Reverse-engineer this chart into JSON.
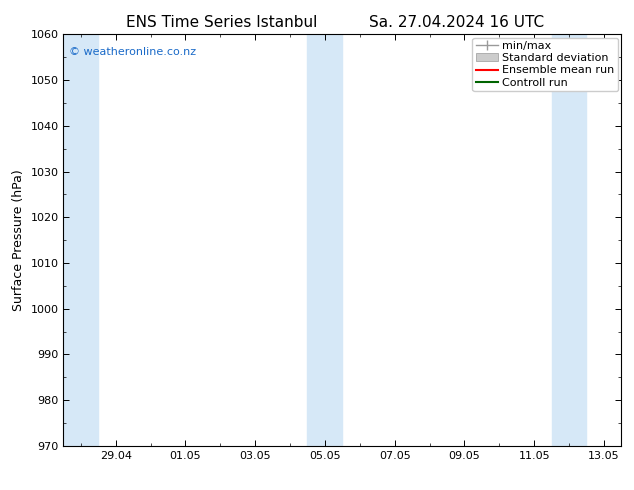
{
  "title_left": "ENS Time Series Istanbul",
  "title_right": "Sa. 27.04.2024 16 UTC",
  "ylabel": "Surface Pressure (hPa)",
  "ylim": [
    970,
    1060
  ],
  "yticks": [
    970,
    980,
    990,
    1000,
    1010,
    1020,
    1030,
    1040,
    1050,
    1060
  ],
  "background_color": "#ffffff",
  "plot_bg_color": "#ffffff",
  "watermark": "© weatheronline.co.nz",
  "watermark_color": "#1a6ac8",
  "xlim": [
    27.5,
    43.5
  ],
  "xtick_positions": [
    29,
    31,
    33,
    35,
    37,
    39,
    41,
    43
  ],
  "xtick_labels": [
    "29.04",
    "01.05",
    "03.05",
    "05.05",
    "07.05",
    "09.05",
    "11.05",
    "13.05"
  ],
  "shaded_columns": [
    {
      "x_start": 27.5,
      "x_end": 28.5
    },
    {
      "x_start": 34.5,
      "x_end": 35.0
    },
    {
      "x_start": 35.0,
      "x_end": 35.5
    },
    {
      "x_start": 41.5,
      "x_end": 42.0
    },
    {
      "x_start": 42.0,
      "x_end": 42.5
    }
  ],
  "shaded_color": "#d6e8f7",
  "grid_color": "#cccccc",
  "tick_color": "#000000",
  "spine_color": "#000000",
  "font_size_title": 11,
  "font_size_axis": 9,
  "font_size_tick": 8,
  "font_size_legend": 8,
  "font_size_watermark": 8,
  "legend_labels": [
    "min/max",
    "Standard deviation",
    "Ensemble mean run",
    "Controll run"
  ],
  "legend_colors": [
    "#999999",
    "#bbbbbb",
    "#ff0000",
    "#006400"
  ]
}
